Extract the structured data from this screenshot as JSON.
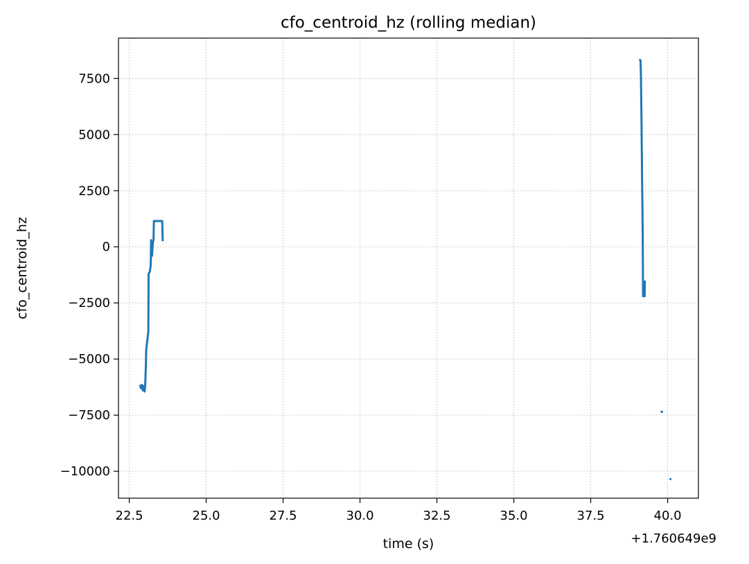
{
  "chart_data": {
    "type": "line",
    "title": "cfo_centroid_hz (rolling median)",
    "xlabel": "time (s)",
    "ylabel": "cfo_centroid_hz",
    "x_offset_label": "+1.760649e9",
    "xlim": [
      22.15,
      41.0
    ],
    "ylim": [
      -11200,
      9300
    ],
    "grid": true,
    "x_ticks": [
      {
        "value": 22.5,
        "label": "22.5"
      },
      {
        "value": 25.0,
        "label": "25.0"
      },
      {
        "value": 27.5,
        "label": "27.5"
      },
      {
        "value": 30.0,
        "label": "30.0"
      },
      {
        "value": 32.5,
        "label": "32.5"
      },
      {
        "value": 35.0,
        "label": "35.0"
      },
      {
        "value": 37.5,
        "label": "37.5"
      },
      {
        "value": 40.0,
        "label": "40.0"
      }
    ],
    "y_ticks": [
      {
        "value": 7500,
        "label": "7500"
      },
      {
        "value": 5000,
        "label": "5000"
      },
      {
        "value": 2500,
        "label": "2500"
      },
      {
        "value": 0,
        "label": "0"
      },
      {
        "value": -2500,
        "label": "−2500"
      },
      {
        "value": -5000,
        "label": "−5000"
      },
      {
        "value": -7500,
        "label": "−7500"
      },
      {
        "value": -10000,
        "label": "−10000"
      }
    ],
    "color": "#1f77b4",
    "segments": [
      {
        "points": [
          [
            22.85,
            -6150
          ],
          [
            22.88,
            -6300
          ],
          [
            22.91,
            -6150
          ],
          [
            22.94,
            -6400
          ],
          [
            22.97,
            -6200
          ],
          [
            23.0,
            -6450
          ],
          [
            23.02,
            -6150
          ],
          [
            23.04,
            -5300
          ],
          [
            23.05,
            -4600
          ],
          [
            23.1,
            -4000
          ],
          [
            23.12,
            -3800
          ],
          [
            23.13,
            -1200
          ],
          [
            23.17,
            -1100
          ],
          [
            23.2,
            -800
          ],
          [
            23.21,
            300
          ],
          [
            23.24,
            -400
          ],
          [
            23.27,
            200
          ],
          [
            23.29,
            300
          ],
          [
            23.3,
            1150
          ],
          [
            23.57,
            1150
          ],
          [
            23.59,
            250
          ]
        ]
      },
      {
        "points": [
          [
            39.08,
            8350
          ],
          [
            39.12,
            8300
          ],
          [
            39.13,
            7700
          ],
          [
            39.15,
            5500
          ],
          [
            39.17,
            3000
          ],
          [
            39.19,
            600
          ],
          [
            39.2,
            -2200
          ],
          [
            39.25,
            -2200
          ],
          [
            39.26,
            -1500
          ]
        ]
      },
      {
        "points": [
          [
            39.77,
            -7350
          ],
          [
            39.85,
            -7350
          ]
        ]
      },
      {
        "points": [
          [
            40.06,
            -10350
          ],
          [
            40.12,
            -10350
          ]
        ]
      }
    ]
  }
}
